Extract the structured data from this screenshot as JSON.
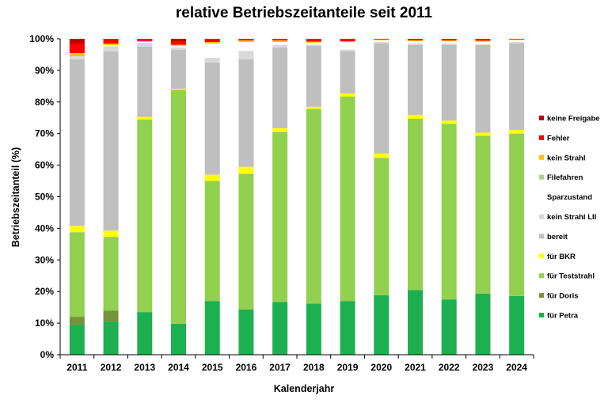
{
  "chart_data": {
    "type": "bar",
    "stacked": true,
    "title": "relative Betriebszeitanteile seit 2011",
    "xlabel": "Kalenderjahr",
    "ylabel": "Betriebszeitanteil (%)",
    "ylim": [
      0,
      100
    ],
    "yticks": [
      "0%",
      "10%",
      "20%",
      "30%",
      "40%",
      "50%",
      "60%",
      "70%",
      "80%",
      "90%",
      "100%"
    ],
    "grid": false,
    "legend_position": "right",
    "categories": [
      "2011",
      "2012",
      "2013",
      "2014",
      "2015",
      "2016",
      "2017",
      "2018",
      "2019",
      "2020",
      "2021",
      "2022",
      "2023",
      "2024"
    ],
    "series": [
      {
        "name": "für Petra",
        "color": "#1db050",
        "values": [
          9.5,
          10.5,
          13.5,
          9.8,
          17.0,
          14.3,
          16.7,
          16.2,
          17.0,
          18.8,
          20.5,
          17.5,
          19.3,
          18.6
        ]
      },
      {
        "name": "für Doris",
        "color": "#77933c",
        "values": [
          2.5,
          3.5,
          0,
          0,
          0,
          0,
          0,
          0,
          0,
          0,
          0,
          0,
          0,
          0
        ]
      },
      {
        "name": "für Teststrahl",
        "color": "#92d050",
        "values": [
          26.8,
          23.3,
          61.0,
          74.0,
          38.0,
          43.0,
          53.8,
          61.6,
          64.7,
          43.5,
          54.2,
          55.6,
          50.0,
          51.4
        ]
      },
      {
        "name": "für BKR",
        "color": "#ffff00",
        "values": [
          2.0,
          2.0,
          0.8,
          0.4,
          2.0,
          2.2,
          1.2,
          0.7,
          1.0,
          1.4,
          1.2,
          1.0,
          1.0,
          1.2
        ]
      },
      {
        "name": "bereit",
        "color": "#bfbfbf",
        "values": [
          52.7,
          56.7,
          22.2,
          12.3,
          35.5,
          34.0,
          25.6,
          19.3,
          13.3,
          34.8,
          22.1,
          23.9,
          27.7,
          27.3
        ]
      },
      {
        "name": "kein Strahl LII",
        "color": "#d9d9d9",
        "values": [
          1.0,
          1.7,
          1.3,
          0.8,
          1.5,
          2.7,
          0.8,
          0.4,
          0.6,
          0.5,
          0.5,
          0.5,
          0.3,
          0.5
        ]
      },
      {
        "name": "Sparzustand",
        "color": "#ffffff",
        "values": [
          0,
          0.3,
          0.2,
          0.5,
          4.5,
          2.8,
          0.9,
          0.6,
          2.4,
          0.5,
          0.8,
          0.7,
          0.8,
          0.6
        ]
      },
      {
        "name": "Filefahren",
        "color": "#a9d08e",
        "values": [
          0,
          0,
          0,
          0,
          0,
          0,
          0,
          0,
          0,
          0,
          0,
          0,
          0,
          0
        ]
      },
      {
        "name": "kein Strahl",
        "color": "#ffc000",
        "values": [
          1.0,
          0.5,
          0.3,
          0.3,
          0.5,
          0.5,
          0.5,
          0.3,
          0.2,
          0.3,
          0.2,
          0.3,
          0.3,
          0.2
        ]
      },
      {
        "name": "Fehler",
        "color": "#ff0000",
        "values": [
          3.0,
          1.5,
          0.7,
          1.0,
          1.0,
          0.5,
          0.5,
          0.9,
          0.8,
          0.2,
          0.5,
          0.5,
          0.6,
          0.2
        ]
      },
      {
        "name": "keine Freigabe",
        "color": "#c00000",
        "values": [
          1.5,
          0,
          0,
          0.9,
          0,
          0,
          0,
          0,
          0,
          0,
          0,
          0,
          0,
          0
        ]
      }
    ]
  }
}
